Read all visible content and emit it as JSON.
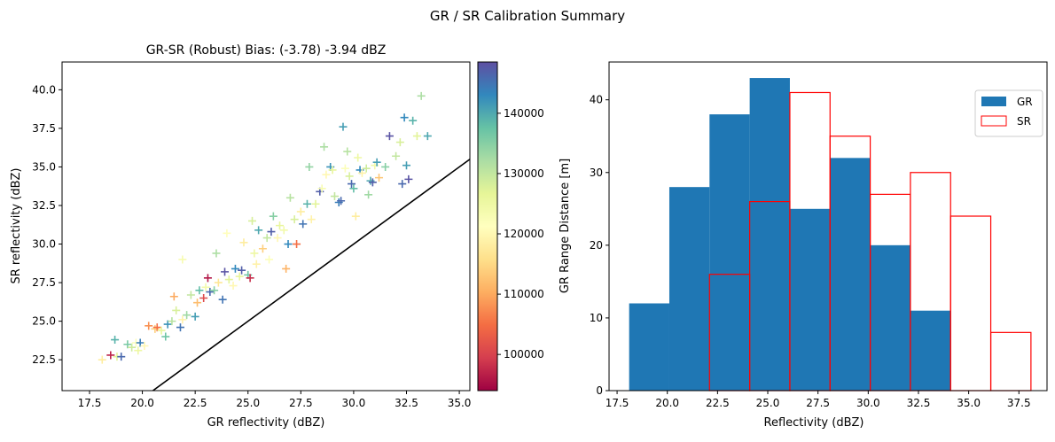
{
  "suptitle": "GR / SR Calibration Summary",
  "colors": {
    "gr_bar": "#1f77b4",
    "sr_edge": "#ff0000",
    "one_to_one": "#000000"
  },
  "scatter": {
    "chart_data": {
      "type": "scatter",
      "title": "GR-SR (Robust) Bias: (-3.78) -3.94 dBZ",
      "xlabel": "GR reflectivity (dBZ)",
      "ylabel": "SR reflectivity (dBZ)",
      "xlim": [
        16.2,
        35.5
      ],
      "ylim": [
        20.5,
        41.8
      ],
      "xticks": [
        "17.5",
        "20.0",
        "22.5",
        "25.0",
        "27.5",
        "30.0",
        "32.5",
        "35.0"
      ],
      "yticks": [
        "22.5",
        "25.0",
        "27.5",
        "30.0",
        "32.5",
        "35.0",
        "37.5",
        "40.0"
      ],
      "marker": "plus",
      "color_scale": "Spectral",
      "clim": [
        94000,
        148500
      ],
      "colorbar_ticks": [
        "100000",
        "110000",
        "120000",
        "130000",
        "140000"
      ],
      "one_to_one_line": true,
      "points": [
        [
          18.1,
          22.5,
          118000
        ],
        [
          18.5,
          22.8,
          97000
        ],
        [
          18.7,
          23.8,
          139000
        ],
        [
          18.8,
          22.7,
          127000
        ],
        [
          19.0,
          22.7,
          146000
        ],
        [
          19.3,
          23.5,
          136000
        ],
        [
          19.5,
          23.3,
          129000
        ],
        [
          19.7,
          23.6,
          122000
        ],
        [
          19.8,
          23.1,
          125000
        ],
        [
          19.9,
          23.6,
          144000
        ],
        [
          20.1,
          23.4,
          120000
        ],
        [
          20.3,
          24.7,
          108000
        ],
        [
          20.6,
          24.5,
          114000
        ],
        [
          20.7,
          24.6,
          105000
        ],
        [
          20.9,
          24.4,
          126000
        ],
        [
          21.1,
          24.0,
          137000
        ],
        [
          21.2,
          24.8,
          142000
        ],
        [
          21.4,
          25.0,
          131000
        ],
        [
          21.5,
          26.6,
          110000
        ],
        [
          21.6,
          25.7,
          128000
        ],
        [
          21.8,
          24.6,
          145000
        ],
        [
          21.9,
          29.0,
          123000
        ],
        [
          21.9,
          25.1,
          119000
        ],
        [
          22.1,
          25.4,
          133000
        ],
        [
          22.3,
          26.7,
          130000
        ],
        [
          22.5,
          25.3,
          141000
        ],
        [
          22.6,
          26.2,
          112000
        ],
        [
          22.7,
          27.0,
          138000
        ],
        [
          22.9,
          26.5,
          101000
        ],
        [
          23.0,
          27.2,
          124000
        ],
        [
          23.1,
          27.8,
          96000
        ],
        [
          23.2,
          26.9,
          146000
        ],
        [
          23.4,
          27.0,
          135000
        ],
        [
          23.5,
          29.4,
          132000
        ],
        [
          23.6,
          27.5,
          117000
        ],
        [
          23.8,
          26.4,
          145000
        ],
        [
          23.9,
          28.2,
          148000
        ],
        [
          24.0,
          30.7,
          121000
        ],
        [
          24.1,
          27.7,
          127000
        ],
        [
          24.3,
          27.3,
          120000
        ],
        [
          24.4,
          28.4,
          143000
        ],
        [
          24.6,
          27.9,
          126000
        ],
        [
          24.7,
          28.3,
          147000
        ],
        [
          24.8,
          30.1,
          118000
        ],
        [
          25.0,
          28.0,
          137000
        ],
        [
          25.1,
          27.8,
          98000
        ],
        [
          25.2,
          31.5,
          128000
        ],
        [
          25.3,
          29.4,
          125000
        ],
        [
          25.4,
          28.7,
          119000
        ],
        [
          25.5,
          30.9,
          140000
        ],
        [
          25.7,
          29.7,
          114000
        ],
        [
          25.9,
          30.4,
          130000
        ],
        [
          26.0,
          29.0,
          122000
        ],
        [
          26.1,
          30.8,
          147000
        ],
        [
          26.2,
          31.8,
          135000
        ],
        [
          26.4,
          30.4,
          120000
        ],
        [
          26.5,
          31.2,
          126000
        ],
        [
          26.7,
          30.9,
          124000
        ],
        [
          26.8,
          28.4,
          111000
        ],
        [
          26.9,
          30.0,
          143000
        ],
        [
          27.0,
          33.0,
          131000
        ],
        [
          27.2,
          31.6,
          128000
        ],
        [
          27.3,
          30.0,
          105000
        ],
        [
          27.5,
          32.1,
          118000
        ],
        [
          27.6,
          31.3,
          145000
        ],
        [
          27.8,
          32.6,
          139000
        ],
        [
          27.9,
          35.0,
          134000
        ],
        [
          28.0,
          31.6,
          119000
        ],
        [
          28.2,
          32.6,
          127000
        ],
        [
          28.4,
          33.4,
          147000
        ],
        [
          28.5,
          33.6,
          123000
        ],
        [
          28.6,
          36.3,
          132000
        ],
        [
          28.7,
          34.5,
          120000
        ],
        [
          28.9,
          35.0,
          142000
        ],
        [
          29.0,
          34.8,
          126000
        ],
        [
          29.1,
          33.1,
          130000
        ],
        [
          29.3,
          32.7,
          144000
        ],
        [
          29.4,
          32.8,
          146000
        ],
        [
          29.5,
          37.6,
          141000
        ],
        [
          29.6,
          34.9,
          122000
        ],
        [
          29.7,
          36.0,
          131000
        ],
        [
          29.8,
          34.4,
          128000
        ],
        [
          29.9,
          33.9,
          146000
        ],
        [
          30.0,
          33.6,
          138000
        ],
        [
          30.1,
          31.8,
          118000
        ],
        [
          30.2,
          35.6,
          125000
        ],
        [
          30.3,
          34.8,
          143000
        ],
        [
          30.4,
          34.6,
          119000
        ],
        [
          30.6,
          34.9,
          129000
        ],
        [
          30.7,
          33.2,
          133000
        ],
        [
          30.8,
          34.1,
          140000
        ],
        [
          30.9,
          34.0,
          147000
        ],
        [
          31.0,
          35.1,
          124000
        ],
        [
          31.1,
          35.3,
          141000
        ],
        [
          31.2,
          34.3,
          113000
        ],
        [
          31.5,
          35.0,
          135000
        ],
        [
          31.7,
          37.0,
          148000
        ],
        [
          32.0,
          35.7,
          130000
        ],
        [
          32.2,
          36.6,
          128000
        ],
        [
          32.3,
          33.9,
          146000
        ],
        [
          32.4,
          38.2,
          143000
        ],
        [
          32.5,
          35.1,
          141000
        ],
        [
          32.6,
          34.2,
          148000
        ],
        [
          32.8,
          38.0,
          139000
        ],
        [
          33.0,
          37.0,
          127000
        ],
        [
          33.2,
          39.6,
          132000
        ],
        [
          33.5,
          37.0,
          140000
        ]
      ]
    }
  },
  "histogram": {
    "chart_data": {
      "type": "bar",
      "xlabel": "Reflectivity (dBZ)",
      "ylabel": "GR Range Distance [m]",
      "xlim": [
        17.1,
        38.9
      ],
      "ylim": [
        0,
        45.2
      ],
      "xticks": [
        "17.5",
        "20.0",
        "22.5",
        "25.0",
        "27.5",
        "30.0",
        "32.5",
        "35.0",
        "37.5"
      ],
      "yticks": [
        "0",
        "10",
        "20",
        "30",
        "40"
      ],
      "legend": {
        "placement": "top-right",
        "entries": [
          "GR",
          "SR"
        ]
      },
      "series": [
        {
          "name": "GR",
          "style": "filled",
          "bins": [
            [
              18.1,
              20.1,
              12
            ],
            [
              20.1,
              22.1,
              28
            ],
            [
              22.1,
              24.1,
              38
            ],
            [
              24.1,
              26.1,
              43
            ],
            [
              26.1,
              28.1,
              25
            ],
            [
              28.1,
              30.1,
              32
            ],
            [
              30.1,
              32.1,
              20
            ],
            [
              32.1,
              34.1,
              11
            ]
          ]
        },
        {
          "name": "SR",
          "style": "outline",
          "bins": [
            [
              22.1,
              24.1,
              16
            ],
            [
              24.1,
              26.1,
              26
            ],
            [
              26.1,
              28.1,
              41
            ],
            [
              28.1,
              30.1,
              35
            ],
            [
              30.1,
              32.1,
              27
            ],
            [
              32.1,
              34.1,
              30
            ],
            [
              34.1,
              36.1,
              24
            ],
            [
              36.1,
              38.1,
              8
            ]
          ]
        }
      ]
    }
  }
}
